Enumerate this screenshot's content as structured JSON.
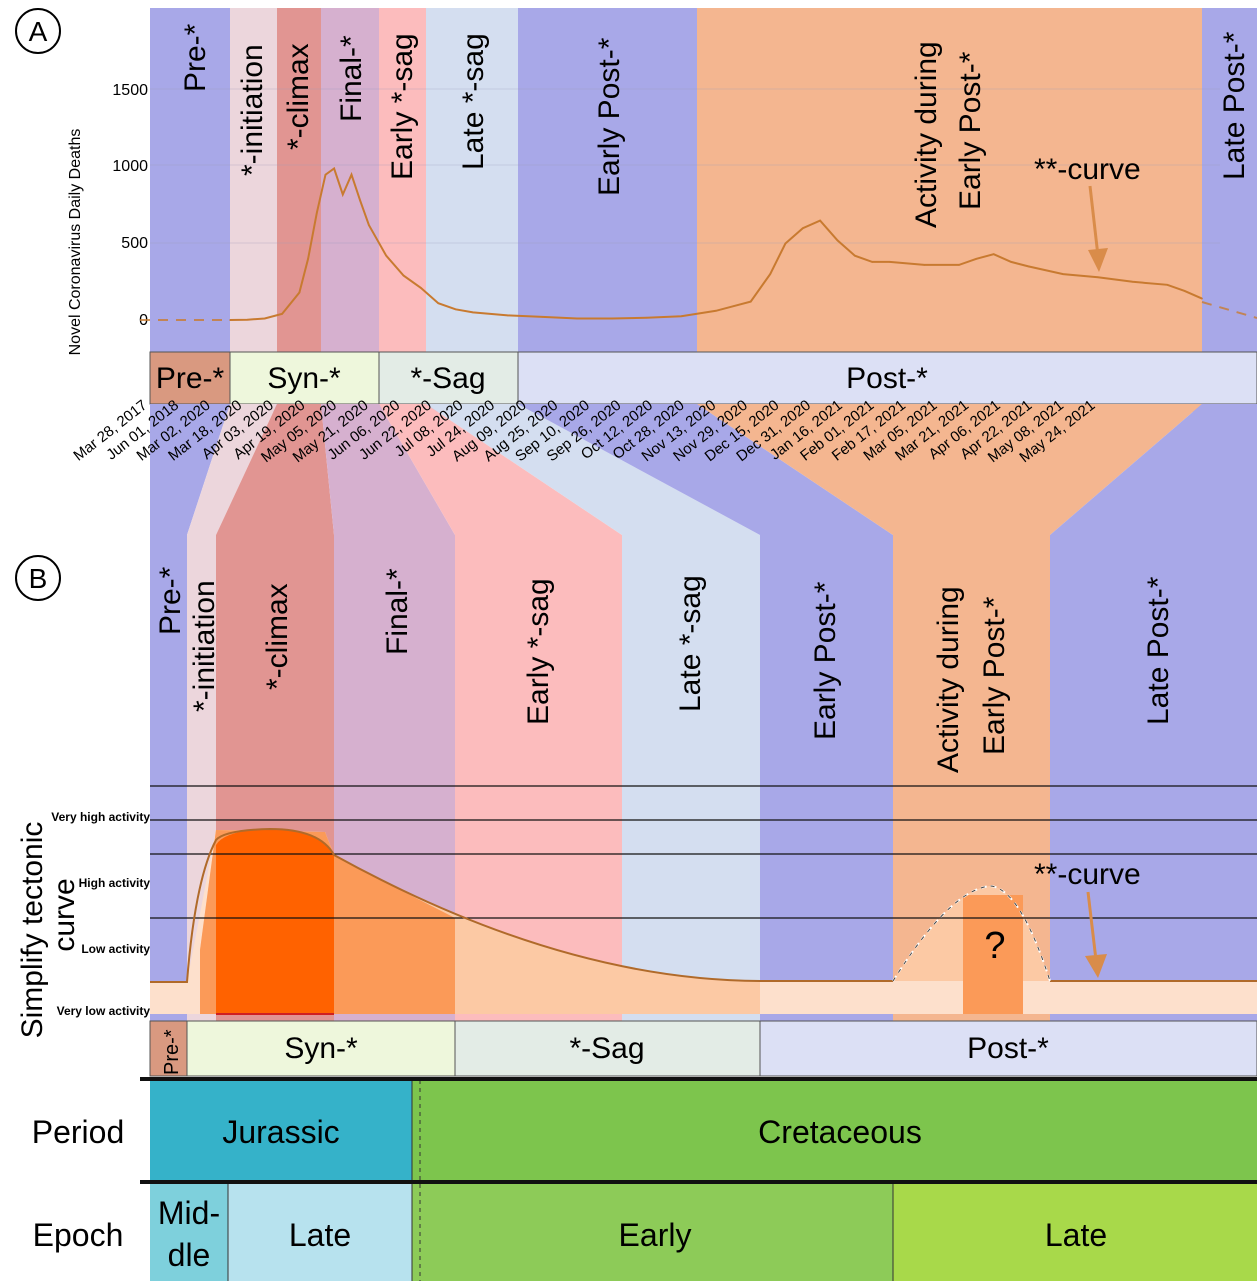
{
  "panel_labels": {
    "a": "A",
    "b": "B"
  },
  "colors": {
    "pre": "#a8a8e8",
    "initiation": "#ecd6dc",
    "climax": "#e19592",
    "final": "#d6b0cf",
    "early_sag": "#fcbcbd",
    "late_sag": "#d4def0",
    "early_post": "#a8a8e8",
    "activity": "#f4b690",
    "late_post": "#a8a8e8",
    "curve": "#c87a30",
    "bar_pre": "#d99980",
    "bar_syn": "#eef7dc",
    "bar_sag": "#e3ece6",
    "bar_post": "#dce0f5",
    "jurassic": "#35b2c9",
    "cretaceous": "#7dc54d",
    "middle_jurassic": "#7ed0dc",
    "late_jurassic": "#b7e2ee",
    "early_cretaceous": "#8dcb58",
    "late_cretaceous": "#a8d94a",
    "annotation": "#d98c4a"
  },
  "panel_a": {
    "y_axis_label": "Novel Coronavirus Daily Deaths",
    "y_ticks": [
      "0",
      "500",
      "1000",
      "1500"
    ],
    "phases": [
      "Pre-*",
      "*-initiation",
      "*-climax",
      "Final-*",
      "Early *-sag",
      "Late *-sag",
      "Early Post-*",
      "Activity during",
      "Early Post-*",
      "Late Post-*"
    ],
    "stage_bar": [
      "Pre-*",
      "Syn-*",
      "*-Sag",
      "Post-*"
    ],
    "annotation": "**-curve",
    "dates": [
      "Mar 28, 2017",
      "Jun 01, 2018",
      "Mar 02, 2020",
      "Mar 18, 2020",
      "Apr 03, 2020",
      "Apr 19, 2020",
      "May 05, 2020",
      "May 21, 2020",
      "Jun 06, 2020",
      "Jun 22, 2020",
      "Jul 08, 2020",
      "Jul 24, 2020",
      "Aug 09, 2020",
      "Aug 25, 2020",
      "Sep 10, 2020",
      "Sep 26, 2020",
      "Oct 12, 2020",
      "Oct 28, 2020",
      "Nov 13, 2020",
      "Nov 29, 2020",
      "Dec 15, 2020",
      "Dec 31, 2020",
      "Jan 16, 2021",
      "Feb 01, 2021",
      "Feb 17, 2021",
      "Mar 05, 2021",
      "Mar 21, 2021",
      "Apr 06, 2021",
      "Apr 22, 2021",
      "May 08, 2021",
      "May 24, 2021"
    ]
  },
  "panel_b": {
    "y_axis_label_line1": "Simplify tectonic",
    "y_axis_label_line2": "curve",
    "levels": [
      "Very high activity",
      "High activity",
      "Low activity",
      "Very low activity"
    ],
    "phases": [
      "Pre-*",
      "*-initiation",
      "*-climax",
      "Final-*",
      "Early *-sag",
      "Late *-sag",
      "Early Post-*",
      "Activity during",
      "Early Post-*",
      "Late Post-*"
    ],
    "stage_bar": [
      "Pre-*",
      "Syn-*",
      "*-Sag",
      "Post-*"
    ],
    "annotation": "**-curve",
    "question": "?"
  },
  "timescale": {
    "period_label": "Period",
    "epoch_label": "Epoch",
    "periods": [
      "Jurassic",
      "Cretaceous"
    ],
    "epochs": [
      "Mid-",
      "dle",
      "Late",
      "Early",
      "Late"
    ]
  },
  "chart_data": {
    "type": "line",
    "title": "",
    "ylabel": "Novel Coronavirus Daily Deaths",
    "ylim": [
      0,
      1900
    ],
    "x": [
      "2020-03-02",
      "2020-03-10",
      "2020-03-18",
      "2020-03-26",
      "2020-04-03",
      "2020-04-07",
      "2020-04-11",
      "2020-04-15",
      "2020-04-19",
      "2020-04-23",
      "2020-04-27",
      "2020-05-01",
      "2020-05-05",
      "2020-05-13",
      "2020-05-21",
      "2020-05-29",
      "2020-06-06",
      "2020-06-14",
      "2020-06-22",
      "2020-07-08",
      "2020-07-24",
      "2020-08-09",
      "2020-08-25",
      "2020-09-10",
      "2020-09-26",
      "2020-10-12",
      "2020-10-20",
      "2020-10-28",
      "2020-11-06",
      "2020-11-13",
      "2020-11-21",
      "2020-11-29",
      "2020-12-07",
      "2020-12-15",
      "2020-12-23",
      "2020-12-31",
      "2021-01-16",
      "2021-02-01",
      "2021-02-09",
      "2021-02-17",
      "2021-02-25",
      "2021-03-05",
      "2021-03-21",
      "2021-04-06",
      "2021-04-22",
      "2021-05-08",
      "2021-05-16",
      "2021-05-24"
    ],
    "series": [
      {
        "values": [
          0,
          2,
          10,
          40,
          180,
          400,
          700,
          950,
          990,
          820,
          950,
          780,
          620,
          420,
          290,
          210,
          110,
          70,
          50,
          30,
          20,
          10,
          10,
          15,
          25,
          60,
          90,
          120,
          300,
          500,
          600,
          650,
          520,
          420,
          380,
          380,
          360,
          360,
          400,
          430,
          380,
          350,
          300,
          280,
          250,
          230,
          190,
          140
        ]
      }
    ],
    "phase_bands": [
      {
        "label": "Pre-*",
        "start": "2019-06-01",
        "end": "2020-03-18"
      },
      {
        "label": "*-initiation",
        "start": "2020-03-18",
        "end": "2020-04-09"
      },
      {
        "label": "*-climax",
        "start": "2020-04-09",
        "end": "2020-05-03"
      },
      {
        "label": "Final-*",
        "start": "2020-05-03",
        "end": "2020-06-03"
      },
      {
        "label": "Early *-sag",
        "start": "2020-06-03",
        "end": "2020-06-22"
      },
      {
        "label": "Late *-sag",
        "start": "2020-06-22",
        "end": "2020-08-09"
      },
      {
        "label": "Early Post-*",
        "start": "2020-08-09",
        "end": "2020-11-13"
      },
      {
        "label": "Activity during Early Post-*",
        "start": "2020-11-13",
        "end": "2021-05-24"
      },
      {
        "label": "Late Post-*",
        "start": "2021-05-24",
        "end": "2021-06-20"
      }
    ]
  }
}
